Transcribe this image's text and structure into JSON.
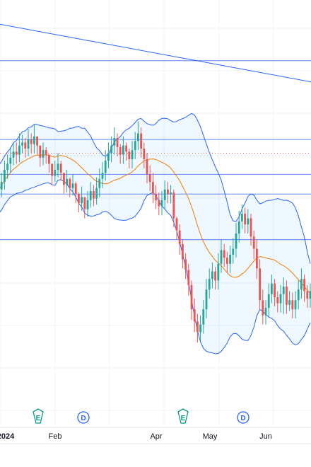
{
  "chart_data": {
    "type": "candlestick",
    "title": "",
    "grid": true,
    "colors": {
      "up": "#26a69a",
      "down": "#ef5350",
      "bollinger": "#2962ff",
      "bollinger_fill": "#2196f3",
      "moving_average": "#f57c00",
      "level_line": "#2962ff",
      "trend_line": "#2962ff",
      "price_dotted": "#ef5350",
      "earnings_badge": "#089981",
      "dividend_badge": "#2962ff",
      "grid": "#f0f3fa",
      "axis_text": "#131722"
    },
    "x_axis": {
      "labels": [
        "2024",
        "Feb",
        "Apr",
        "May",
        "Jun"
      ]
    },
    "events": [
      {
        "type": "earnings",
        "label": "E"
      },
      {
        "type": "dividend",
        "label": "D"
      },
      {
        "type": "earnings",
        "label": "E"
      },
      {
        "type": "dividend",
        "label": "D"
      }
    ],
    "horizontal_levels": [
      20,
      14.8,
      12.5,
      11.2,
      8.2
    ],
    "trend_line": {
      "from": 22.4,
      "to": 18.6
    },
    "y_range": [
      -4,
      24
    ],
    "candles_open": [
      10.5,
      11.5,
      12.0,
      12.8,
      13.2,
      13.6,
      14.0,
      13.8,
      14.4,
      14.6,
      14.2,
      14.8,
      14.5,
      15.0,
      14.4,
      13.6,
      14.1,
      13.8,
      13.2,
      12.4,
      12.8,
      13.2,
      12.6,
      11.8,
      12.2,
      11.6,
      11.9,
      11.2,
      10.6,
      11.0,
      10.2,
      10.8,
      11.4,
      10.9,
      11.6,
      12.2,
      12.6,
      13.4,
      13.9,
      14.4,
      14.9,
      14.3,
      13.8,
      14.4,
      14.0,
      13.5,
      14.1,
      14.7,
      15.2,
      14.2,
      13.5,
      12.5,
      12.0,
      11.2,
      10.8,
      10.4,
      10.8,
      11.5,
      11.2,
      11.3,
      9.6,
      8.8,
      7.9,
      6.9,
      6.2,
      5.2,
      3.6,
      2.8,
      2.1,
      2.6,
      3.6,
      4.9,
      5.6,
      6.1,
      5.5,
      6.6,
      7.5,
      7.0,
      6.6,
      7.2,
      7.6,
      8.6,
      9.4,
      9.9,
      9.2,
      9.6,
      8.4,
      7.6,
      6.3,
      4.2,
      3.2,
      3.7,
      4.6,
      5.3,
      4.4,
      4.0,
      4.6,
      5.1,
      3.9,
      4.2,
      3.6,
      4.2,
      4.9,
      5.6,
      4.8,
      4.3
    ],
    "candles_close": [
      11.5,
      12.0,
      12.8,
      13.2,
      13.6,
      14.0,
      13.8,
      14.4,
      14.6,
      14.2,
      14.8,
      14.5,
      15.0,
      14.4,
      13.6,
      14.1,
      13.8,
      13.2,
      12.4,
      12.8,
      13.2,
      12.6,
      11.8,
      12.2,
      11.6,
      11.9,
      11.2,
      10.6,
      11.0,
      10.2,
      10.8,
      11.4,
      10.9,
      11.6,
      12.2,
      12.6,
      13.4,
      13.9,
      14.4,
      14.9,
      14.3,
      13.8,
      14.4,
      14.0,
      13.5,
      14.1,
      14.7,
      15.2,
      14.2,
      13.5,
      12.5,
      12.0,
      11.2,
      10.8,
      10.4,
      10.8,
      11.5,
      11.2,
      11.3,
      9.6,
      8.8,
      7.9,
      6.9,
      6.2,
      5.2,
      3.6,
      2.8,
      2.1,
      2.6,
      3.6,
      4.9,
      5.6,
      6.1,
      5.5,
      6.6,
      7.5,
      7.0,
      6.6,
      7.2,
      7.6,
      8.6,
      9.4,
      9.9,
      9.2,
      9.6,
      8.4,
      7.6,
      6.3,
      4.2,
      3.2,
      3.7,
      4.6,
      5.3,
      4.4,
      4.0,
      4.6,
      5.1,
      3.9,
      4.2,
      3.6,
      4.2,
      4.9,
      5.6,
      4.8,
      4.3,
      4.8
    ],
    "candles_high": [
      12.0,
      12.6,
      13.4,
      13.8,
      14.3,
      14.6,
      14.6,
      15.2,
      15.1,
      14.9,
      15.5,
      15.2,
      15.8,
      15.0,
      14.1,
      14.6,
      14.3,
      13.7,
      13.0,
      13.4,
      13.9,
      13.4,
      12.5,
      12.8,
      12.3,
      12.5,
      12.0,
      11.3,
      11.7,
      11.0,
      11.4,
      12.0,
      11.8,
      12.3,
      12.9,
      13.3,
      14.1,
      14.6,
      15.0,
      15.6,
      15.2,
      14.5,
      15.0,
      14.6,
      14.2,
      14.7,
      15.3,
      16.0,
      15.6,
      14.6,
      13.9,
      13.1,
      12.6,
      11.8,
      11.3,
      11.4,
      12.1,
      12.0,
      11.8,
      11.5,
      9.7,
      9.2,
      8.2,
      7.3,
      6.6,
      5.5,
      4.3,
      3.3,
      3.2,
      4.2,
      5.6,
      6.3,
      6.7,
      6.4,
      7.3,
      8.2,
      7.9,
      7.4,
      7.8,
      8.3,
      9.3,
      10.1,
      10.5,
      10.3,
      10.2,
      9.9,
      8.8,
      8.2,
      6.9,
      4.9,
      4.2,
      5.3,
      5.9,
      5.6,
      4.8,
      5.2,
      5.7,
      5.5,
      4.8,
      4.7,
      4.8,
      5.5,
      6.3,
      5.9,
      5.2,
      5.3
    ],
    "candles_low": [
      10.0,
      11.0,
      11.5,
      12.2,
      12.6,
      13.1,
      13.2,
      13.3,
      13.9,
      13.6,
      13.7,
      13.9,
      13.9,
      13.8,
      13.0,
      13.1,
      13.2,
      12.6,
      11.8,
      12.0,
      12.3,
      12.1,
      11.2,
      11.3,
      11.0,
      11.1,
      10.6,
      10.0,
      10.1,
      9.6,
      9.7,
      10.3,
      10.4,
      10.5,
      11.0,
      11.6,
      12.1,
      12.9,
      13.3,
      13.8,
      13.7,
      13.2,
      13.2,
      13.4,
      12.9,
      12.9,
      13.5,
      14.1,
      13.6,
      12.9,
      11.9,
      11.4,
      10.6,
      10.2,
      9.8,
      9.8,
      10.2,
      10.6,
      10.6,
      9.0,
      8.2,
      7.2,
      6.3,
      5.6,
      4.5,
      2.9,
      2.1,
      1.4,
      1.5,
      2.0,
      3.0,
      4.3,
      5.0,
      4.9,
      4.9,
      6.0,
      6.4,
      6.0,
      6.0,
      6.6,
      7.0,
      8.0,
      8.9,
      8.6,
      8.6,
      7.8,
      6.9,
      5.6,
      3.6,
      2.6,
      2.6,
      3.1,
      4.0,
      3.8,
      3.4,
      3.4,
      3.3,
      3.3,
      3.5,
      3.0,
      3.0,
      3.6,
      4.3,
      4.1,
      3.7,
      3.7
    ]
  }
}
